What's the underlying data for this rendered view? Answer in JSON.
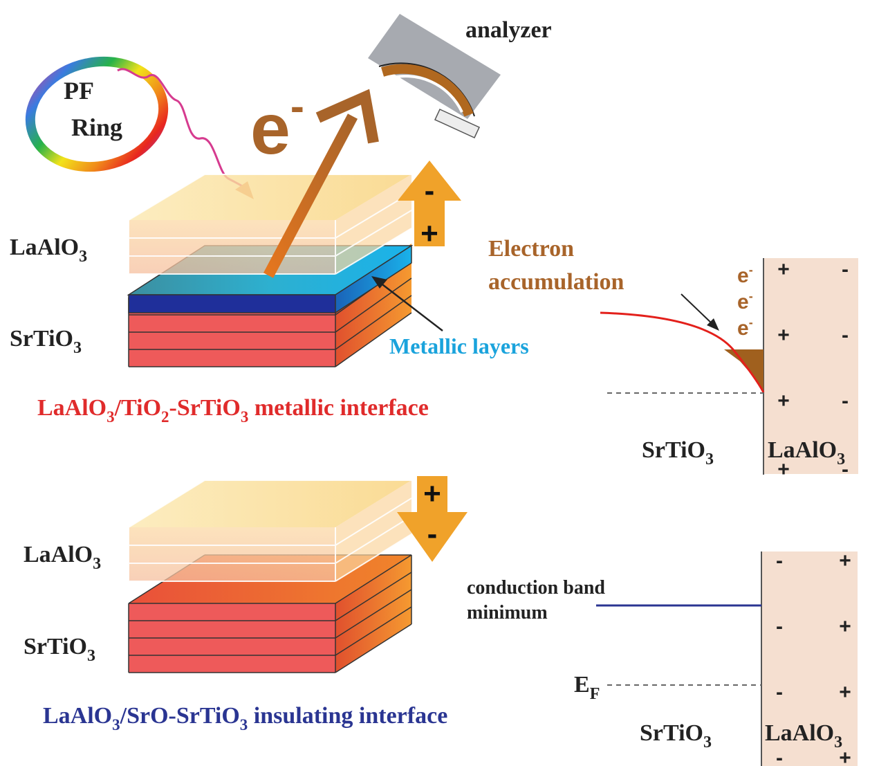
{
  "source": {
    "ring_line1": "PF",
    "ring_line2": "Ring",
    "analyzer_label": "analyzer",
    "electron_label": "e",
    "electron_sup": "-"
  },
  "metallic": {
    "laalo3_label": "LaAlO",
    "laalo3_sub": "3",
    "srtio3_label": "SrTiO",
    "srtio3_sub": "3",
    "arrow_top_sign": "-",
    "arrow_bottom_sign": "+",
    "metallic_layers_label": "Metallic layers",
    "caption": {
      "p1": "LaAlO",
      "s1": "3",
      "p2": "/TiO",
      "s2": "2",
      "p3": "-SrTiO",
      "s3": "3",
      "p4": " metallic interface"
    }
  },
  "insulating": {
    "laalo3_label": "LaAlO",
    "laalo3_sub": "3",
    "srtio3_label": "SrTiO",
    "srtio3_sub": "3",
    "arrow_top_sign": "+",
    "arrow_bottom_sign": "-",
    "caption": {
      "p1": "LaAlO",
      "s1": "3",
      "p2": "/SrO-SrTiO",
      "s2": "3",
      "p3": " insulating interface"
    }
  },
  "band_top": {
    "title_line1": "Electron",
    "title_line2": "accumulation",
    "electron_symbol": "e",
    "electron_sup": "-",
    "left_label": "SrTiO",
    "left_sub": "3",
    "right_label": "LaAlO",
    "right_sub": "3",
    "plus": "+",
    "minus": "-"
  },
  "band_bottom": {
    "cbm_line1": "conduction band",
    "cbm_line2": "minimum",
    "ef_label": "E",
    "ef_sub": "F",
    "left_label": "SrTiO",
    "left_sub": "3",
    "right_label": "LaAlO",
    "right_sub": "3",
    "plus": "+",
    "minus": "-"
  },
  "colors": {
    "red_caption": "#e02b2b",
    "blue_caption": "#2a3592",
    "brown": "#a8642a",
    "orange_arrow": "#f0a22a",
    "metallic_blue": "#1aa3dc",
    "laalo3_panel": "#f5dfd0",
    "band_red": "#e3201b",
    "band_blue": "#2a3592"
  }
}
